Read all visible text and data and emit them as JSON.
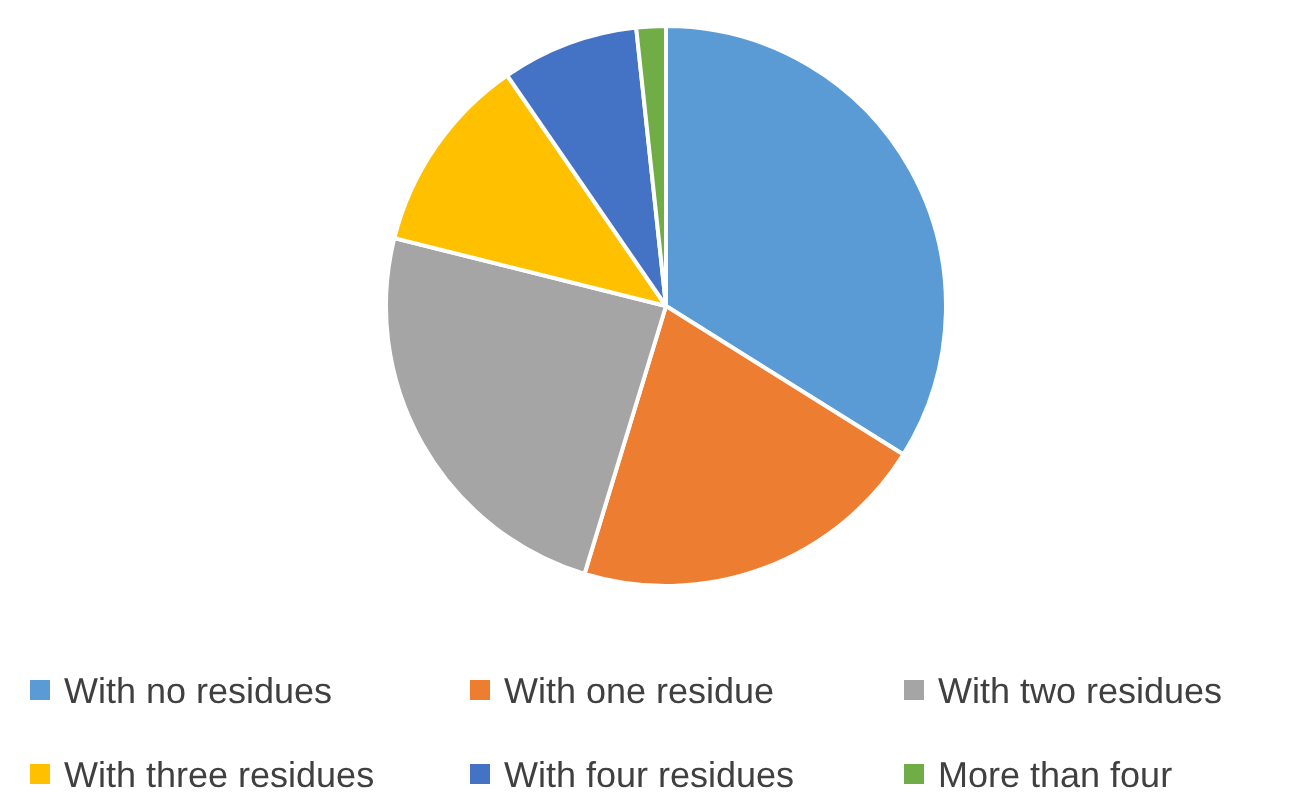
{
  "chart_data": {
    "type": "pie",
    "categories": [
      "With no residues",
      "With one residue",
      "With two residues",
      "With three residues",
      "With four residues",
      "More than four"
    ],
    "values": [
      33.9,
      20.8,
      24.2,
      11.5,
      7.9,
      1.7
    ],
    "colors": [
      "#5b9bd5",
      "#ed7d31",
      "#a5a5a5",
      "#ffc000",
      "#4472c4",
      "#70ad47"
    ],
    "legend": "bottom"
  }
}
